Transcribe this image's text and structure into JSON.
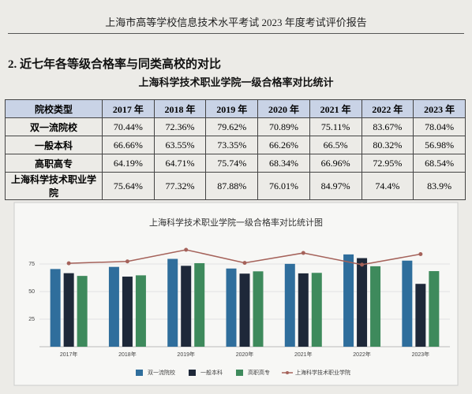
{
  "header": {
    "title": "上海市高等学校信息技术水平考试 2023 年度考试评价报告"
  },
  "section": {
    "heading": "2. 近七年各等级合格率与同类高校的对比"
  },
  "table": {
    "title": "上海科学技术职业学院一级合格率对比统计",
    "header": [
      "院校类型",
      "2017 年",
      "2018 年",
      "2019 年",
      "2020 年",
      "2021 年",
      "2022 年",
      "2023 年"
    ],
    "rows": [
      [
        "双一流院校",
        "70.44%",
        "72.36%",
        "79.62%",
        "70.89%",
        "75.11%",
        "83.67%",
        "78.04%"
      ],
      [
        "一般本科",
        "66.66%",
        "63.55%",
        "73.35%",
        "66.26%",
        "66.5%",
        "80.32%",
        "56.98%"
      ],
      [
        "高职高专",
        "64.19%",
        "64.71%",
        "75.74%",
        "68.34%",
        "66.96%",
        "72.95%",
        "68.54%"
      ],
      [
        "上海科学技术职业学院",
        "75.64%",
        "77.32%",
        "87.88%",
        "76.01%",
        "84.97%",
        "74.4%",
        "83.9%"
      ]
    ]
  },
  "chart_data": {
    "type": "bar",
    "title": "上海科学技术职业学院一级合格率对比统计图",
    "categories": [
      "2017年",
      "2018年",
      "2019年",
      "2020年",
      "2021年",
      "2022年",
      "2023年"
    ],
    "ylim": [
      0,
      100
    ],
    "yticks": [
      25,
      50,
      75
    ],
    "grid": true,
    "series": [
      {
        "name": "双一流院校",
        "color": "#2f6e9c",
        "values": [
          70.44,
          72.36,
          79.62,
          70.89,
          75.11,
          83.67,
          78.04
        ]
      },
      {
        "name": "一般本科",
        "color": "#1e2839",
        "values": [
          66.66,
          63.55,
          73.35,
          66.26,
          66.5,
          80.32,
          56.98
        ]
      },
      {
        "name": "高职高专",
        "color": "#3e8a5c",
        "values": [
          64.19,
          64.71,
          75.74,
          68.34,
          66.96,
          72.95,
          68.54
        ]
      },
      {
        "name": "上海科学技术职业学院",
        "type": "line",
        "color": "#a5625a",
        "values": [
          75.64,
          77.32,
          87.88,
          76.01,
          84.97,
          74.4,
          83.9
        ]
      }
    ]
  }
}
